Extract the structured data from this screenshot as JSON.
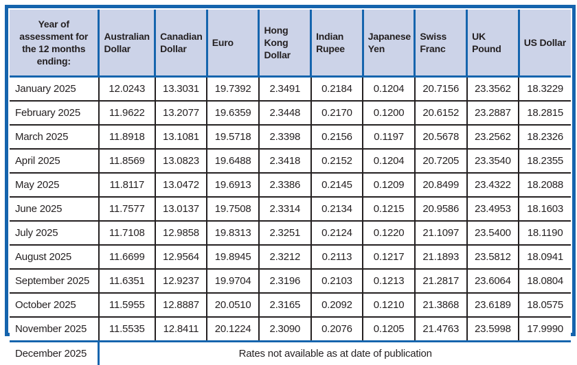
{
  "table": {
    "columns": [
      "Year of assessment for the 12 months ending:",
      "Australian Dollar",
      "Canadian Dollar",
      "Euro",
      "Hong Kong Dollar",
      "Indian Rupee",
      "Japanese Yen",
      "Swiss Franc",
      "UK Pound",
      "US Dollar"
    ],
    "rows": [
      {
        "month": "January 2025",
        "values": [
          "12.0243",
          "13.3031",
          "19.7392",
          "2.3491",
          "0.2184",
          "0.1204",
          "20.7156",
          "23.3562",
          "18.3229"
        ]
      },
      {
        "month": "February 2025",
        "values": [
          "11.9622",
          "13.2077",
          "19.6359",
          "2.3448",
          "0.2170",
          "0.1200",
          "20.6152",
          "23.2887",
          "18.2815"
        ]
      },
      {
        "month": "March 2025",
        "values": [
          "11.8918",
          "13.1081",
          "19.5718",
          "2.3398",
          "0.2156",
          "0.1197",
          "20.5678",
          "23.2562",
          "18.2326"
        ]
      },
      {
        "month": "April 2025",
        "values": [
          "11.8569",
          "13.0823",
          "19.6488",
          "2.3418",
          "0.2152",
          "0.1204",
          "20.7205",
          "23.3540",
          "18.2355"
        ]
      },
      {
        "month": "May 2025",
        "values": [
          "11.8117",
          "13.0472",
          "19.6913",
          "2.3386",
          "0.2145",
          "0.1209",
          "20.8499",
          "23.4322",
          "18.2088"
        ]
      },
      {
        "month": "June 2025",
        "values": [
          "11.7577",
          "13.0137",
          "19.7508",
          "2.3314",
          "0.2134",
          "0.1215",
          "20.9586",
          "23.4953",
          "18.1603"
        ]
      },
      {
        "month": "July 2025",
        "values": [
          "11.7108",
          "12.9858",
          "19.8313",
          "2.3251",
          "0.2124",
          "0.1220",
          "21.1097",
          "23.5400",
          "18.1190"
        ]
      },
      {
        "month": "August 2025",
        "values": [
          "11.6699",
          "12.9564",
          "19.8945",
          "2.3212",
          "0.2113",
          "0.1217",
          "21.1893",
          "23.5812",
          "18.0941"
        ]
      },
      {
        "month": "September 2025",
        "values": [
          "11.6351",
          "12.9237",
          "19.9704",
          "2.3196",
          "0.2103",
          "0.1213",
          "21.2817",
          "23.6064",
          "18.0804"
        ]
      },
      {
        "month": "October 2025",
        "values": [
          "11.5955",
          "12.8887",
          "20.0510",
          "2.3165",
          "0.2092",
          "0.1210",
          "21.3868",
          "23.6189",
          "18.0575"
        ]
      },
      {
        "month": "November 2025",
        "values": [
          "11.5535",
          "12.8411",
          "20.1224",
          "2.3090",
          "0.2076",
          "0.1205",
          "21.4763",
          "23.5998",
          "17.9990"
        ]
      }
    ],
    "december": {
      "month": "December 2025",
      "note": "Rates not available as at date of publication"
    }
  },
  "colors": {
    "frame_blue": "#1564ad",
    "header_background": "#ccd3e8",
    "grid_black": "#231f20"
  }
}
